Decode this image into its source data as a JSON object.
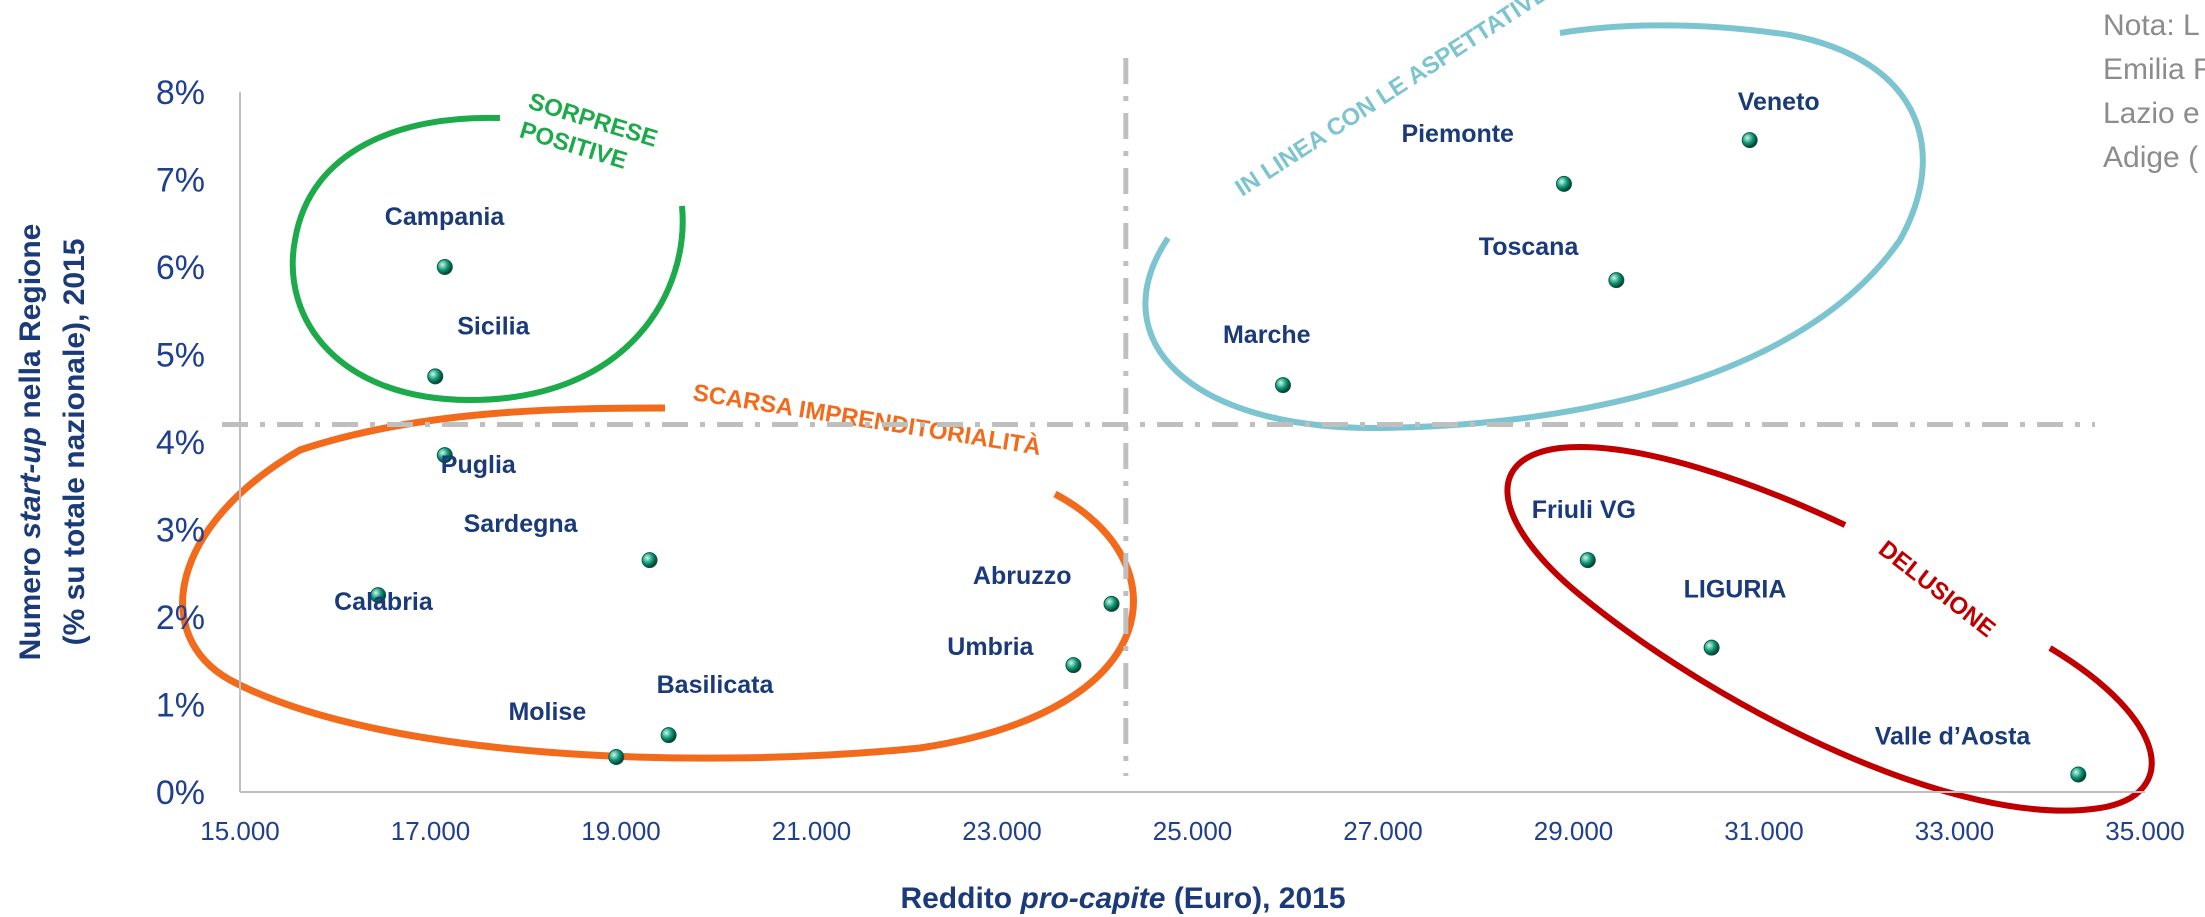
{
  "note_lines": [
    "Nota: L",
    "Emilia R",
    "Lazio e",
    "Adige ("
  ],
  "colors": {
    "axis_text": "#1F3F8F",
    "point": "#0E9A77",
    "reference_line": "#BFBFBF",
    "group_sorprese": "#1DAA4A",
    "group_linea": "#7CC4CF",
    "group_scarsa": "#F26B1D",
    "group_delusione": "#C00000"
  },
  "chart_data": {
    "type": "scatter",
    "title": "",
    "xlabel_parts": [
      "Reddito ",
      "pro-capite",
      " (Euro), 2015"
    ],
    "ylabel_line1_parts": [
      "Numero ",
      "start-up",
      " nella Regione"
    ],
    "ylabel_line2": "(% su totale nazionale), 2015",
    "xlim": [
      15000,
      35000
    ],
    "ylim": [
      0,
      8
    ],
    "x_ticks": [
      15000,
      17000,
      19000,
      21000,
      23000,
      25000,
      27000,
      29000,
      31000,
      33000,
      35000
    ],
    "x_tick_labels": [
      "15.000",
      "17.000",
      "19.000",
      "21.000",
      "23.000",
      "25.000",
      "27.000",
      "29.000",
      "31.000",
      "33.000",
      "35.000"
    ],
    "y_ticks": [
      0,
      1,
      2,
      3,
      4,
      5,
      6,
      7,
      8
    ],
    "y_tick_labels": [
      "0%",
      "1%",
      "2%",
      "3%",
      "4%",
      "5%",
      "6%",
      "7%",
      "8%"
    ],
    "reference_lines": {
      "x": 24300,
      "y": 4.2
    },
    "grid": false,
    "points": [
      {
        "name": "Campania",
        "x": 17150,
        "y": 6.0
      },
      {
        "name": "Sicilia",
        "x": 17050,
        "y": 4.75
      },
      {
        "name": "Puglia",
        "x": 17150,
        "y": 3.85
      },
      {
        "name": "Sardegna",
        "x": 19300,
        "y": 2.65
      },
      {
        "name": "Calabria",
        "x": 16450,
        "y": 2.25
      },
      {
        "name": "Basilicata",
        "x": 19500,
        "y": 0.65
      },
      {
        "name": "Molise",
        "x": 18950,
        "y": 0.4
      },
      {
        "name": "Abruzzo",
        "x": 24150,
        "y": 2.15
      },
      {
        "name": "Umbria",
        "x": 23750,
        "y": 1.45
      },
      {
        "name": "Marche",
        "x": 25950,
        "y": 4.65
      },
      {
        "name": "Piemonte",
        "x": 28900,
        "y": 6.95
      },
      {
        "name": "Toscana",
        "x": 29450,
        "y": 5.85
      },
      {
        "name": "Veneto",
        "x": 30850,
        "y": 7.45
      },
      {
        "name": "Friuli VG",
        "x": 29150,
        "y": 2.65
      },
      {
        "name": "LIGURIA",
        "x": 30450,
        "y": 1.65
      },
      {
        "name": "Valle d’Aosta",
        "x": 34300,
        "y": 0.2
      }
    ],
    "groups": [
      {
        "name": "SORPRESE POSITIVE",
        "lines": [
          "SORPRESE",
          "POSITIVE"
        ]
      },
      {
        "name": "IN LINEA CON LE ASPETTATIVE"
      },
      {
        "name": "SCARSA IMPRENDITORIALITÀ"
      },
      {
        "name": "DELUSIONE"
      }
    ]
  }
}
